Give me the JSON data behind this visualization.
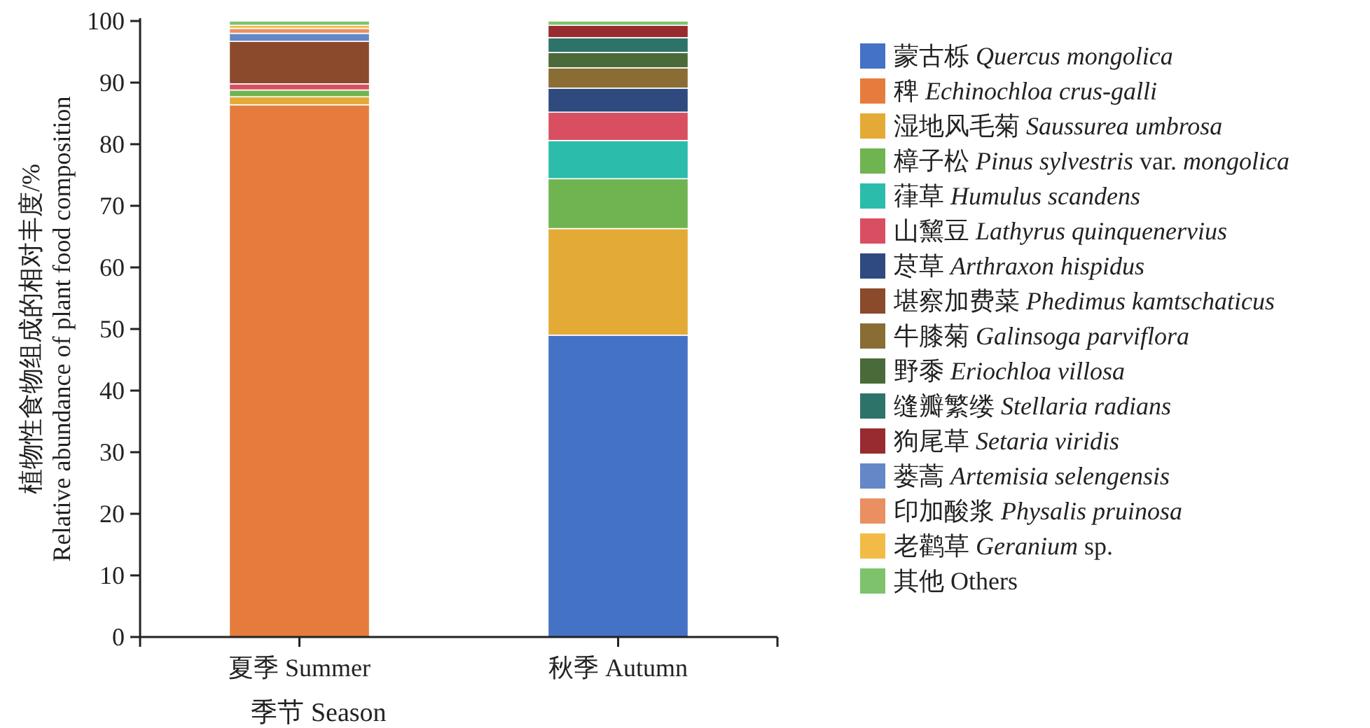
{
  "chart_data": {
    "type": "bar",
    "stacked": true,
    "xlabel": "季节 Season",
    "ylabel": "植物性食物组成的相对丰度/%\nRelative abundance of plant food composition",
    "categories": [
      "夏季 Summer",
      "秋季 Autumn"
    ],
    "ylim": [
      0,
      100
    ],
    "yticks": [
      0,
      10,
      20,
      30,
      40,
      50,
      60,
      70,
      80,
      90,
      100
    ],
    "grid": false,
    "legend": "right",
    "series": [
      {
        "name": "蒙古栎 Quercus mongolica",
        "color": "#4472c4",
        "values": [
          null,
          49.0
        ]
      },
      {
        "name": "稗 Echinochloa crus-galli",
        "color": "#e57c3e",
        "values": [
          86.4,
          null
        ]
      },
      {
        "name": "湿地风毛菊 Saussurea umbrosa",
        "color": "#e3aa35",
        "values": [
          1.3,
          17.3
        ]
      },
      {
        "name": "樟子松 Pinus sylvestris var. mongolica",
        "color": "#70b452",
        "values": [
          1.1,
          8.1
        ]
      },
      {
        "name": "葎草 Humulus scandens",
        "color": "#2bbcac",
        "values": [
          null,
          6.2
        ]
      },
      {
        "name": "山黧豆 Lathyrus quinquenervius",
        "color": "#d94f62",
        "values": [
          1.0,
          4.6
        ]
      },
      {
        "name": "荩草 Arthraxon hispidus",
        "color": "#2e4a7f",
        "values": [
          null,
          3.9
        ]
      },
      {
        "name": "堪察加费菜 Phedimus kamtschaticus",
        "color": "#8b4a2b",
        "values": [
          6.9,
          null
        ]
      },
      {
        "name": "牛膝菊 Galinsoga parviflora",
        "color": "#8a6d35",
        "values": [
          null,
          3.3
        ]
      },
      {
        "name": "野黍 Eriochloa villosa",
        "color": "#4a6b39",
        "values": [
          null,
          2.5
        ]
      },
      {
        "name": "缝瓣繁缕 Stellaria radians",
        "color": "#2e7369",
        "values": [
          null,
          2.4
        ]
      },
      {
        "name": "狗尾草 Setaria viridis",
        "color": "#982b30",
        "values": [
          null,
          2.0
        ]
      },
      {
        "name": "蒌蒿 Artemisia selengensis",
        "color": "#6487c7",
        "values": [
          1.3,
          null
        ]
      },
      {
        "name": "印加酸浆 Physalis pruinosa",
        "color": "#ea8f62",
        "values": [
          0.8,
          null
        ]
      },
      {
        "name": "老鹳草 Geranium sp.",
        "color": "#f2bb46",
        "values": [
          0.5,
          null
        ]
      },
      {
        "name": "其他 Others",
        "color": "#7ec36c",
        "values": [
          0.7,
          0.7
        ]
      }
    ]
  }
}
